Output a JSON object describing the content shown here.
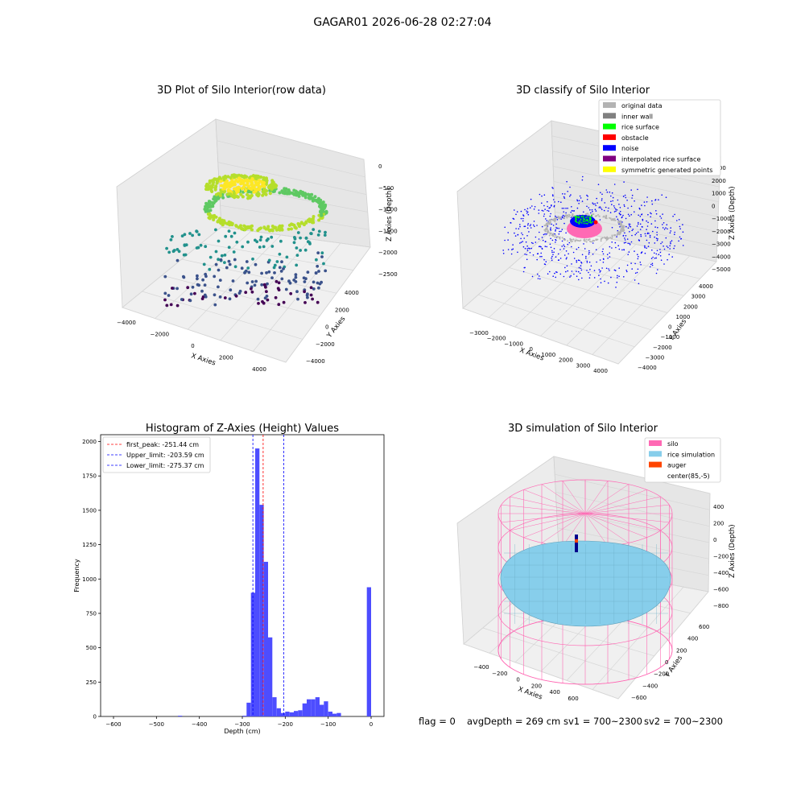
{
  "figure_title": "GAGAR01 2026-06-28 02:27:04",
  "footer": {
    "flag": "flag = 0",
    "avg": "avgDepth = 269 cm",
    "sv1": "sv1 = 700~2300",
    "sv2": "sv2 = 700~2300"
  },
  "colors": {
    "hist_bar": "#4d4dff",
    "first_peak": "#ff0000",
    "limit_lines": "#0000ff",
    "silo": "#ff69b4",
    "rice": "#87ceeb",
    "auger": "#ff4500",
    "original": "#b3b3b3",
    "inner_wall": "#808080",
    "rice_surface": "#00ff00",
    "obstacle": "#ff0000",
    "noise": "#0000ff",
    "interp": "#800080",
    "symmetric": "#ffff00"
  },
  "chart_data": [
    {
      "type": "scatter",
      "projection": "3d",
      "title": "3D Plot of Silo Interior(row data)",
      "xlabel": "X Axies",
      "ylabel": "Y Axies",
      "zlabel": "Z Axies (Depth)",
      "xticks": [
        "−4000",
        "−2000",
        "0",
        "2000",
        "4000"
      ],
      "yticks": [
        "−4000",
        "−2000",
        "0",
        "2000",
        "4000"
      ],
      "zticks": [
        "0",
        "−500",
        "−1000",
        "−1500",
        "−2000",
        "−2500"
      ],
      "colormap": "viridis",
      "zlim": [
        -2600,
        0
      ]
    },
    {
      "type": "scatter",
      "projection": "3d",
      "title": "3D classify of Silo Interior",
      "xlabel": "X Axies",
      "ylabel": "Y Axies",
      "zlabel": "Z Axies (Depth)",
      "xticks": [
        "−3000",
        "−2000",
        "−1000",
        "0",
        "1000",
        "2000",
        "3000",
        "4000"
      ],
      "yticks": [
        "−4000",
        "−3000",
        "−2000",
        "−1000",
        "0",
        "1000",
        "2000",
        "3000",
        "4000"
      ],
      "zticks": [
        "3000",
        "2000",
        "1000",
        "0",
        "−1000",
        "−2000",
        "−3000",
        "−4000",
        "−5000"
      ],
      "legend": [
        "original data",
        "inner wall",
        "rice surface",
        "obstacle",
        "noise",
        "interpolated rice surface",
        "symmetric generated points"
      ],
      "legend_position": "top-right"
    },
    {
      "type": "bar",
      "title": "Histogram of Z-Axies (Height) Values",
      "xlabel": "Depth (cm)",
      "ylabel": "Frequency",
      "xlim": [
        -630,
        30
      ],
      "ylim": [
        0,
        2050
      ],
      "xticks": [
        -600,
        -500,
        -400,
        -300,
        -200,
        -100,
        0
      ],
      "yticks": [
        0,
        250,
        500,
        750,
        1000,
        1250,
        1500,
        1750,
        2000
      ],
      "bin_width": 10,
      "bins": [
        {
          "x0": -450,
          "count": 5
        },
        {
          "x0": -300,
          "count": 5
        },
        {
          "x0": -290,
          "count": 100
        },
        {
          "x0": -280,
          "count": 900
        },
        {
          "x0": -270,
          "count": 1950
        },
        {
          "x0": -260,
          "count": 1540
        },
        {
          "x0": -250,
          "count": 1125
        },
        {
          "x0": -240,
          "count": 575
        },
        {
          "x0": -230,
          "count": 140
        },
        {
          "x0": -220,
          "count": 60
        },
        {
          "x0": -210,
          "count": 25
        },
        {
          "x0": -200,
          "count": 35
        },
        {
          "x0": -190,
          "count": 30
        },
        {
          "x0": -180,
          "count": 40
        },
        {
          "x0": -170,
          "count": 45
        },
        {
          "x0": -160,
          "count": 95
        },
        {
          "x0": -150,
          "count": 125
        },
        {
          "x0": -140,
          "count": 125
        },
        {
          "x0": -130,
          "count": 140
        },
        {
          "x0": -120,
          "count": 85
        },
        {
          "x0": -110,
          "count": 110
        },
        {
          "x0": -100,
          "count": 35
        },
        {
          "x0": -90,
          "count": 20
        },
        {
          "x0": -80,
          "count": 25
        },
        {
          "x0": -70,
          "count": 940
        }
      ],
      "bin_offset_note": "",
      "vlines": [
        {
          "x": -251.44,
          "label": "first_peak: -251.44 cm",
          "color": "#ff0000"
        },
        {
          "x": -203.59,
          "label": "Upper_limit: -203.59 cm",
          "color": "#0000ff"
        },
        {
          "x": -275.37,
          "label": "Lower_limit: -275.37 cm",
          "color": "#0000ff"
        }
      ],
      "legend_position": "top-left"
    },
    {
      "type": "surface",
      "projection": "3d",
      "title": "3D simulation of Silo Interior",
      "xlabel": "X Axies",
      "ylabel": "Y Axies",
      "zlabel": "Z Axies (Depth)",
      "xticks": [
        "−400",
        "−200",
        "0",
        "200",
        "400",
        "600"
      ],
      "yticks": [
        "−600",
        "−400",
        "−200",
        "0",
        "200",
        "400",
        "600"
      ],
      "zticks": [
        "400",
        "200",
        "0",
        "−200",
        "−400",
        "−600",
        "−800"
      ],
      "legend": [
        "silo",
        "rice simulation",
        "auger",
        "center(85,-5)"
      ],
      "legend_position": "top-right"
    }
  ]
}
